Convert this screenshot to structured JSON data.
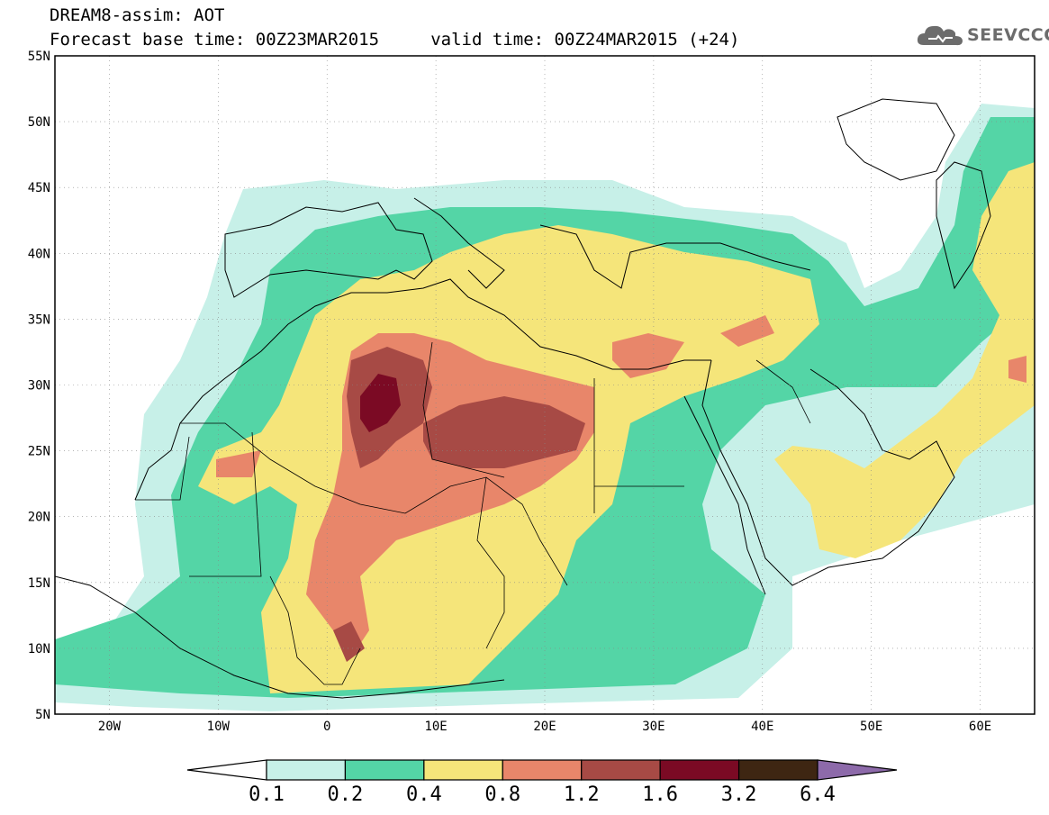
{
  "title": {
    "line1": "DREAM8-assim: AOT",
    "line2": "Forecast base time: 00Z23MAR2015     valid time: 00Z24MAR2015 (+24)"
  },
  "logo": {
    "text": "SEEVCCC",
    "icon": "cloud-icon"
  },
  "map": {
    "lat_labels": [
      "55N",
      "50N",
      "45N",
      "40N",
      "35N",
      "30N",
      "25N",
      "20N",
      "15N",
      "10N",
      "5N"
    ],
    "lon_labels": [
      "20W",
      "10W",
      "0",
      "10E",
      "20E",
      "30E",
      "40E",
      "50E",
      "60E"
    ],
    "lat_range": [
      5,
      55
    ],
    "lon_range": [
      -25,
      65
    ],
    "grid": "dotted"
  },
  "colorbar": {
    "labels": [
      "0.1",
      "0.2",
      "0.4",
      "0.8",
      "1.2",
      "1.6",
      "3.2",
      "6.4"
    ],
    "colors": [
      "#ffffff",
      "#c7f0e8",
      "#54d5a6",
      "#f5e57a",
      "#e8866a",
      "#a74a45",
      "#7b0a24",
      "#3e2612",
      "#8d6aaa"
    ]
  }
}
